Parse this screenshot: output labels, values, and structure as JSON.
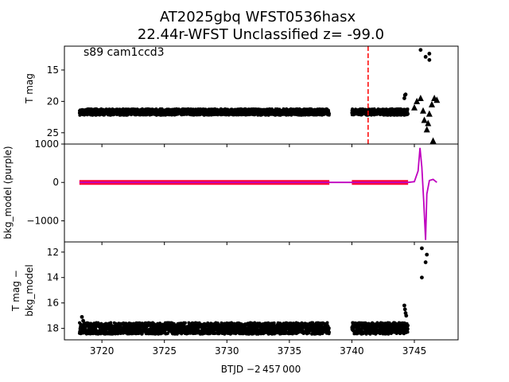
{
  "title": {
    "line1": "AT2025gbq  WFST0536hasx",
    "line2": "22.44r-WFST Unclassified z= -99.0"
  },
  "annotation": "s89 cam1ccd3",
  "xlabel": "BTJD −2 457 000",
  "colors": {
    "points": "#000000",
    "bkg_model_line": "#bf00bf",
    "bkg_points": "#ff0033",
    "marker_line": "#ff0000"
  },
  "chart_data": [
    {
      "type": "scatter",
      "panel": "top",
      "ylabel": "T mag",
      "xlim": [
        3717.0,
        3748.5
      ],
      "ylim": [
        26.8,
        11.2
      ],
      "y_inverted": true,
      "yticks": [
        15,
        20,
        25
      ],
      "grid": false,
      "vertical_line": {
        "x": 3741.3,
        "style": "dashed"
      },
      "segments": [
        {
          "x_start": 3718.2,
          "x_end": 3738.2,
          "y_center": 21.7,
          "y_spread": 0.5
        },
        {
          "x_start": 3740.0,
          "x_end": 3744.5,
          "y_center": 21.7,
          "y_spread": 0.5
        }
      ],
      "points": [
        {
          "x": 3744.2,
          "y": 19.5
        },
        {
          "x": 3744.3,
          "y": 18.9
        },
        {
          "x": 3744.25,
          "y": 19.0
        },
        {
          "x": 3745.5,
          "y": 11.8
        },
        {
          "x": 3745.9,
          "y": 12.9
        },
        {
          "x": 3746.2,
          "y": 13.4
        },
        {
          "x": 3746.2,
          "y": 12.4
        }
      ],
      "triangles": [
        {
          "x": 3745.0,
          "y": 21.0
        },
        {
          "x": 3745.2,
          "y": 20.0
        },
        {
          "x": 3745.5,
          "y": 19.5
        },
        {
          "x": 3745.7,
          "y": 21.5
        },
        {
          "x": 3745.8,
          "y": 23.0
        },
        {
          "x": 3746.0,
          "y": 24.5
        },
        {
          "x": 3746.1,
          "y": 23.5
        },
        {
          "x": 3746.2,
          "y": 22.0
        },
        {
          "x": 3746.4,
          "y": 20.5
        },
        {
          "x": 3746.6,
          "y": 19.5
        },
        {
          "x": 3746.8,
          "y": 19.8
        },
        {
          "x": 3746.5,
          "y": 26.3
        }
      ]
    },
    {
      "type": "line",
      "panel": "middle",
      "ylabel": "bkg_model (purple)",
      "xlim": [
        3717.0,
        3748.5
      ],
      "ylim": [
        -1550,
        1000
      ],
      "yticks": [
        -1000,
        0,
        1000
      ],
      "grid": false,
      "segments": [
        {
          "x_start": 3718.2,
          "x_end": 3738.2,
          "y": 0
        },
        {
          "x_start": 3740.0,
          "x_end": 3744.5,
          "y": 0
        }
      ],
      "bkg_line": {
        "x": [
          3718.2,
          3738.2,
          3740.0,
          3744.5,
          3745.0,
          3745.3,
          3745.45,
          3745.6,
          3745.75,
          3745.9,
          3746.0,
          3746.2,
          3746.5,
          3746.8
        ],
        "y": [
          0,
          0,
          0,
          0,
          20,
          300,
          900,
          400,
          -500,
          -1500,
          -300,
          50,
          80,
          0
        ]
      }
    },
    {
      "type": "scatter",
      "panel": "bottom",
      "ylabel_line1": "T mag −",
      "ylabel_line2": "bkg_model",
      "xlim": [
        3717.0,
        3748.5
      ],
      "ylim": [
        18.9,
        11.2
      ],
      "y_inverted": true,
      "xticks": [
        3720,
        3725,
        3730,
        3735,
        3740,
        3745
      ],
      "yticks": [
        12,
        14,
        16,
        18
      ],
      "grid": false,
      "segments": [
        {
          "x_start": 3718.2,
          "x_end": 3738.2,
          "y_center": 18.0,
          "y_spread": 0.45
        },
        {
          "x_start": 3740.0,
          "x_end": 3744.5,
          "y_center": 18.0,
          "y_spread": 0.45
        }
      ],
      "points": [
        {
          "x": 3718.4,
          "y": 17.1
        },
        {
          "x": 3718.5,
          "y": 17.4
        },
        {
          "x": 3744.2,
          "y": 16.2
        },
        {
          "x": 3744.25,
          "y": 16.5
        },
        {
          "x": 3744.3,
          "y": 16.8
        },
        {
          "x": 3744.35,
          "y": 17.0
        },
        {
          "x": 3745.6,
          "y": 11.7
        },
        {
          "x": 3746.0,
          "y": 12.2
        },
        {
          "x": 3745.9,
          "y": 12.8
        },
        {
          "x": 3745.6,
          "y": 14.0
        }
      ]
    }
  ]
}
